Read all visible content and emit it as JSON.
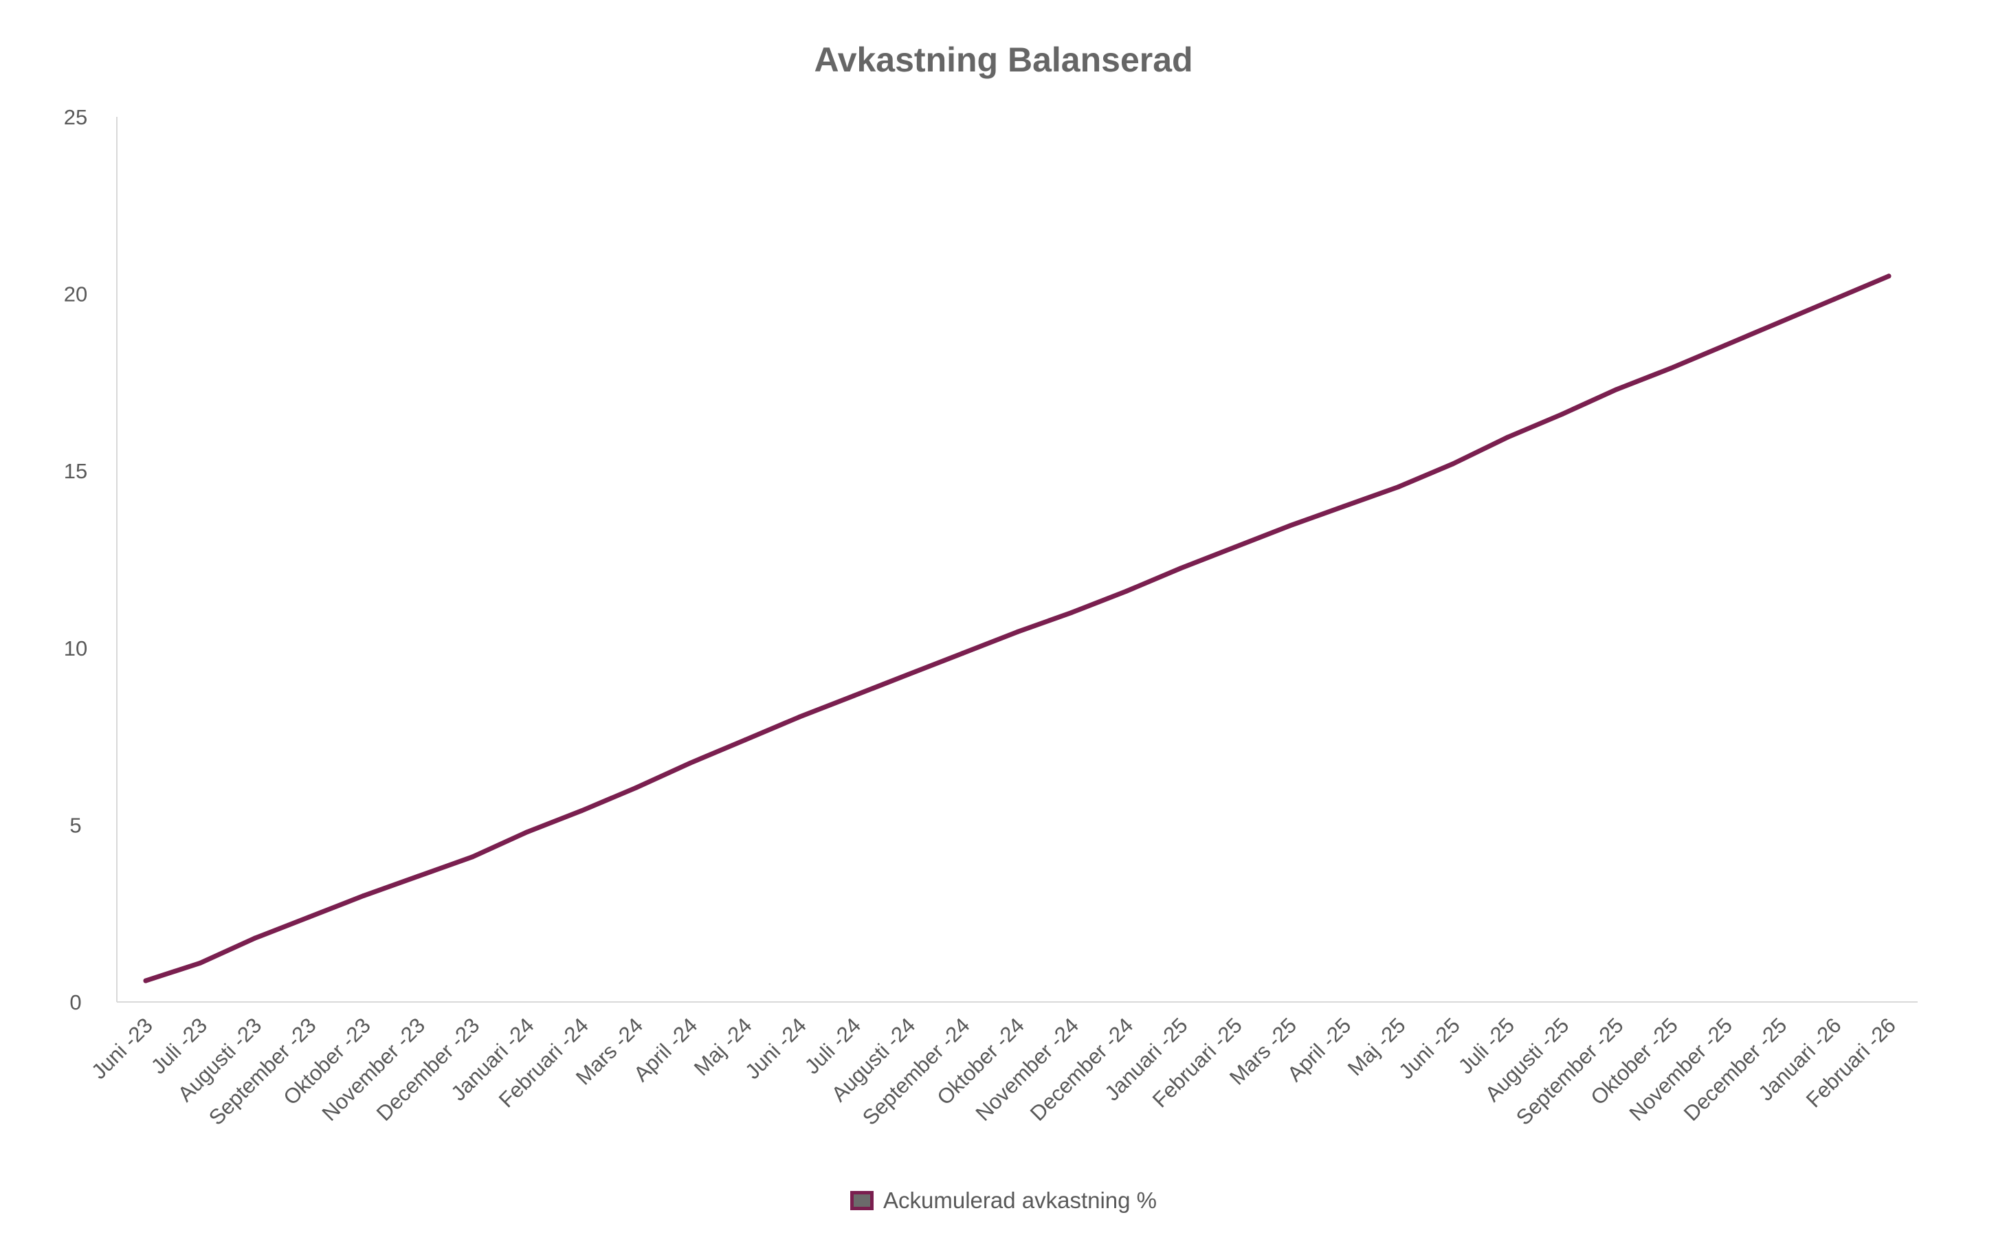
{
  "chart_data": {
    "type": "line",
    "title": "Avkastning Balanserad",
    "xlabel": "",
    "ylabel": "",
    "ylim": [
      0,
      25
    ],
    "yticks": [
      "0",
      "5",
      "10",
      "15",
      "20",
      "25"
    ],
    "grid": false,
    "legend_position": "bottom",
    "categories": [
      "Juni -23",
      "Juli -23",
      "Augusti -23",
      "September -23",
      "Oktober -23",
      "November -23",
      "December -23",
      "Januari -24",
      "Februari -24",
      "Mars -24",
      "April -24",
      "Maj -24",
      "Juni -24",
      "Juli -24",
      "Augusti -24",
      "September -24",
      "Oktober -24",
      "November -24",
      "December -24",
      "Januari -25",
      "Februari -25",
      "Mars -25",
      "April -25",
      "Maj -25",
      "Juni -25",
      "Juli -25",
      "Augusti -25",
      "September -25",
      "Oktober -25",
      "November -25",
      "December -25",
      "Januari -26",
      "Februari -26"
    ],
    "series": [
      {
        "name": "Ackumulerad avkastning %",
        "color": "#7a1f4f",
        "values": [
          0.6,
          1.1,
          1.8,
          2.4,
          3.0,
          3.55,
          4.1,
          4.8,
          5.4,
          6.05,
          6.75,
          7.4,
          8.05,
          8.65,
          9.25,
          9.85,
          10.45,
          11.0,
          11.6,
          12.25,
          12.85,
          13.45,
          14.0,
          14.55,
          15.2,
          15.95,
          16.6,
          17.3,
          17.9,
          18.55,
          19.2,
          19.85,
          20.5
        ]
      }
    ]
  }
}
